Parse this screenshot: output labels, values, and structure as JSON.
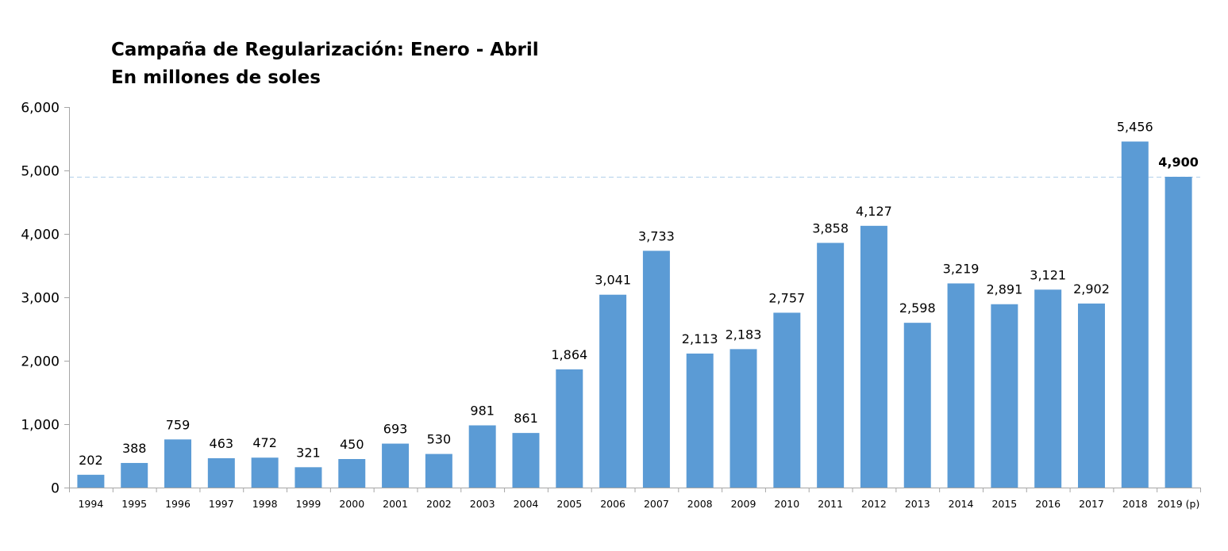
{
  "chart_data": {
    "type": "bar",
    "title": "Campaña de Regularización: Enero - Abril",
    "subtitle": "En millones de soles",
    "xlabel": "",
    "ylabel": "",
    "ylim": [
      0,
      6000
    ],
    "yticks": [
      "0",
      "1,000",
      "2,000",
      "3,000",
      "4,000",
      "5,000",
      "6,000"
    ],
    "grid": false,
    "legend": "none",
    "bar_color": "#5B9BD5",
    "reference_line": {
      "value": 4900,
      "style": "dashed",
      "color": "#BDD7EE"
    },
    "categories": [
      "1994",
      "1995",
      "1996",
      "1997",
      "1998",
      "1999",
      "2000",
      "2001",
      "2002",
      "2003",
      "2004",
      "2005",
      "2006",
      "2007",
      "2008",
      "2009",
      "2010",
      "2011",
      "2012",
      "2013",
      "2014",
      "2015",
      "2016",
      "2017",
      "2018",
      "2019 (p)"
    ],
    "values": [
      202,
      388,
      759,
      463,
      472,
      321,
      450,
      693,
      530,
      981,
      861,
      1864,
      3041,
      3733,
      2113,
      2183,
      2757,
      3858,
      4127,
      2598,
      3219,
      2891,
      3121,
      2902,
      5456,
      4900
    ],
    "data_labels": [
      "202",
      "388",
      "759",
      "463",
      "472",
      "321",
      "450",
      "693",
      "530",
      "981",
      "861",
      "1,864",
      "3,041",
      "3,733",
      "2,113",
      "2,183",
      "2,757",
      "3,858",
      "4,127",
      "2,598",
      "3,219",
      "2,891",
      "3,121",
      "2,902",
      "5,456",
      "4,900"
    ],
    "bold_labels": [
      "4,900"
    ]
  }
}
